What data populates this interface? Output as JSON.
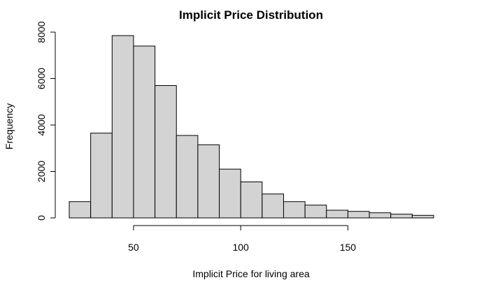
{
  "chart_data": {
    "type": "bar",
    "title": "Implicit Price Distribution",
    "xlabel": "Implicit Price for living area",
    "ylabel": "Frequency",
    "bin_edges": [
      20,
      30,
      40,
      50,
      60,
      70,
      80,
      90,
      100,
      110,
      120,
      130,
      140,
      150,
      160,
      170,
      180,
      190
    ],
    "values": [
      700,
      3650,
      7850,
      7400,
      5700,
      3550,
      3150,
      2100,
      1550,
      1030,
      700,
      550,
      330,
      280,
      220,
      160,
      110
    ],
    "xlim": [
      20,
      190
    ],
    "ylim": [
      0,
      8000
    ],
    "x_ticks": [
      50,
      100,
      150
    ],
    "y_ticks": [
      0,
      2000,
      4000,
      6000,
      8000
    ],
    "bar_color": "#d3d3d3",
    "grid": false
  }
}
